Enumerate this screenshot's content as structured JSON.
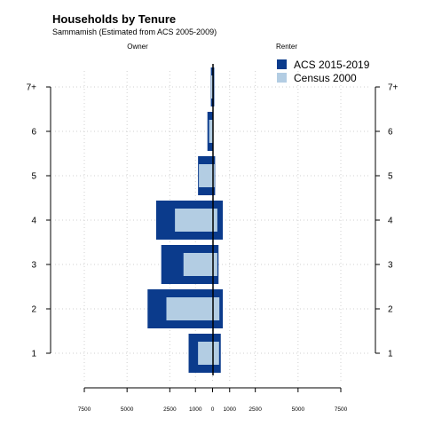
{
  "chart_data": {
    "type": "bar",
    "title": "Households by Tenure",
    "subtitle": "Sammamish (Estimated from ACS 2005-2009)",
    "left_label": "Owner",
    "right_label": "Renter",
    "categories": [
      "1",
      "2",
      "3",
      "4",
      "5",
      "6",
      "7+"
    ],
    "x_tick_labels": [
      "7500",
      "5000",
      "2500",
      "1000",
      "0",
      "1000",
      "2500",
      "5000",
      "7500"
    ],
    "x_tick_values": [
      -7500,
      -5000,
      -2500,
      -1000,
      0,
      1000,
      2500,
      5000,
      7500
    ],
    "xlim": [
      -7500,
      7500
    ],
    "grid": true,
    "legend_position": "top-right",
    "series": [
      {
        "name": "ACS 2015-2019",
        "color": "#0b3b8c",
        "owner": [
          1400,
          3800,
          3000,
          3300,
          850,
          300,
          100
        ],
        "renter": [
          480,
          600,
          350,
          600,
          150,
          50,
          100
        ]
      },
      {
        "name": "Census 2000",
        "color": "#b3cde3",
        "owner": [
          850,
          2700,
          1700,
          2200,
          800,
          200,
          80
        ],
        "renter": [
          380,
          400,
          280,
          280,
          120,
          30,
          50
        ]
      }
    ]
  }
}
